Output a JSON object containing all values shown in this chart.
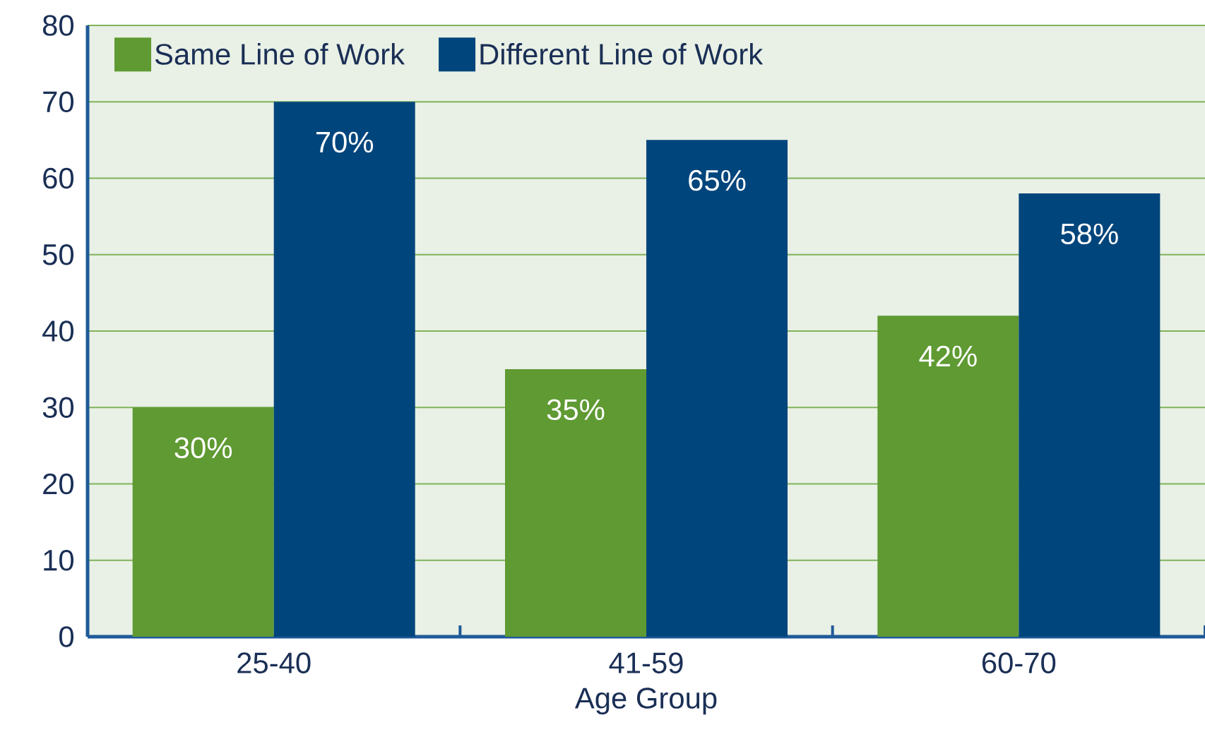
{
  "chart_data": {
    "type": "bar",
    "xlabel": "Age Group",
    "categories": [
      "25-40",
      "41-59",
      "60-70"
    ],
    "series": [
      {
        "name": "Same Line of Work",
        "color": "#5f9a32",
        "values": [
          30,
          35,
          42
        ],
        "value_labels": [
          "30%",
          "35%",
          "42%"
        ]
      },
      {
        "name": "Different Line of Work",
        "color": "#00457c",
        "values": [
          70,
          65,
          58
        ],
        "value_labels": [
          "70%",
          "65%",
          "58%"
        ]
      }
    ],
    "ylim": [
      0,
      80
    ],
    "yticks": [
      0,
      10,
      20,
      30,
      40,
      50,
      60,
      70,
      80
    ],
    "grid": "y",
    "legend": "top left"
  }
}
